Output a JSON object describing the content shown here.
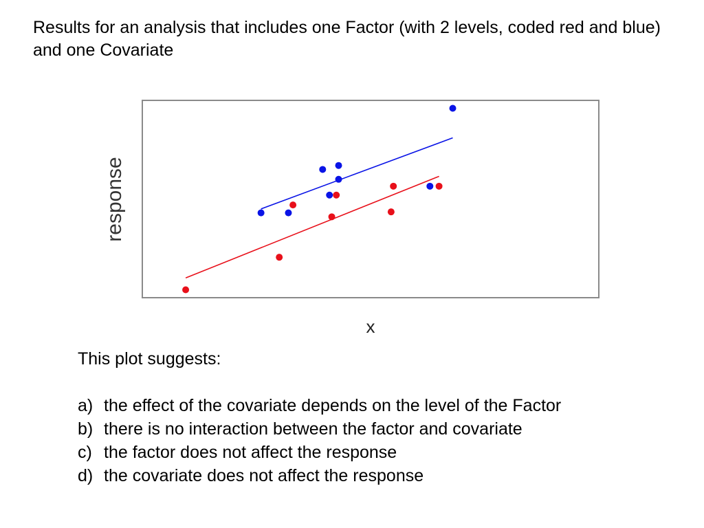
{
  "heading": "Results for an analysis that includes one Factor (with 2 levels, coded red and blue) and one Covariate",
  "chart_data": {
    "type": "scatter",
    "title": "",
    "xlabel": "x",
    "ylabel": "response",
    "xlim": [
      0,
      10
    ],
    "ylim": [
      0,
      10
    ],
    "grid": false,
    "series": [
      {
        "color": "#e8101a",
        "points": [
          {
            "x": 0.95,
            "y": 0.4
          },
          {
            "x": 3.0,
            "y": 2.05
          },
          {
            "x": 3.3,
            "y": 4.7
          },
          {
            "x": 4.15,
            "y": 4.1
          },
          {
            "x": 4.25,
            "y": 5.2
          },
          {
            "x": 5.45,
            "y": 4.35
          },
          {
            "x": 5.5,
            "y": 5.65
          },
          {
            "x": 6.5,
            "y": 5.65
          }
        ],
        "fit": {
          "x": [
            0.95,
            6.5
          ],
          "y": [
            1.0,
            6.15
          ]
        }
      },
      {
        "color": "#0a14e6",
        "points": [
          {
            "x": 2.6,
            "y": 4.3
          },
          {
            "x": 3.2,
            "y": 4.3
          },
          {
            "x": 3.95,
            "y": 6.5
          },
          {
            "x": 4.1,
            "y": 5.2
          },
          {
            "x": 4.3,
            "y": 6.7
          },
          {
            "x": 4.3,
            "y": 6.0
          },
          {
            "x": 6.3,
            "y": 5.65
          },
          {
            "x": 6.8,
            "y": 9.6
          }
        ],
        "fit": {
          "x": [
            2.6,
            6.8
          ],
          "y": [
            4.5,
            8.1
          ]
        }
      }
    ]
  },
  "question": {
    "prompt": "This plot suggests:",
    "options": [
      {
        "letter": "a)",
        "text": "the effect of the covariate depends on the level of the Factor"
      },
      {
        "letter": "b)",
        "text": "there is no interaction between the factor and covariate"
      },
      {
        "letter": "c)",
        "text": "the factor does not affect the response"
      },
      {
        "letter": "d)",
        "text": "the covariate does not affect the response"
      }
    ]
  }
}
